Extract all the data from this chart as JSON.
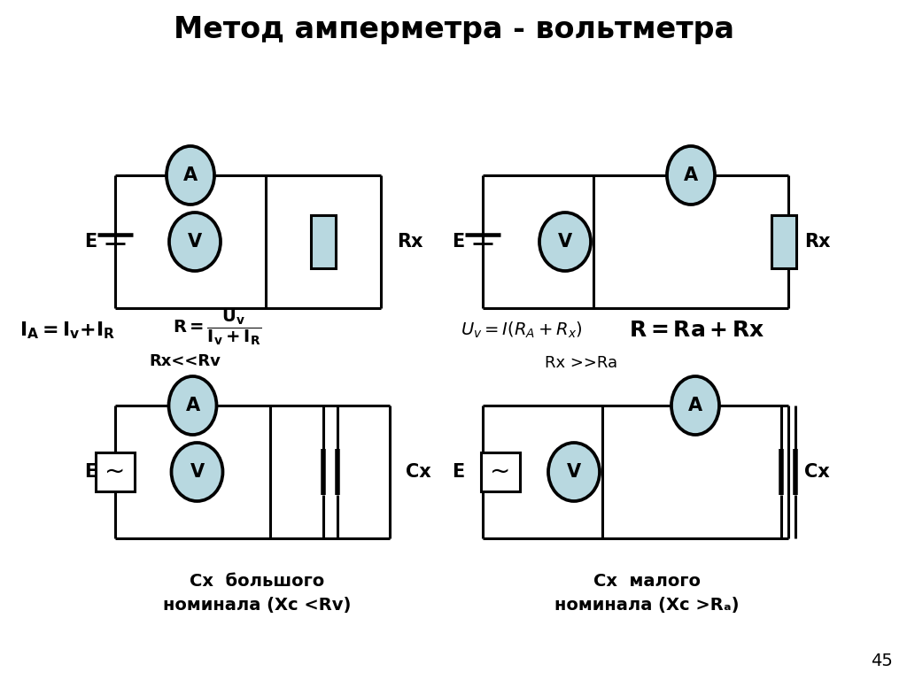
{
  "title": "Метод амперметра - вольтметра",
  "bg_color": "#ffffff",
  "cc": "#000000",
  "ic": "#b8d8e0",
  "rc": "#b8d8e0",
  "lw": 2.2,
  "caption_bl": "Cx  большого\nноминала (Xc <Rv)",
  "caption_br": "Cx  малого\nноминала (Xc >Rₐ)"
}
